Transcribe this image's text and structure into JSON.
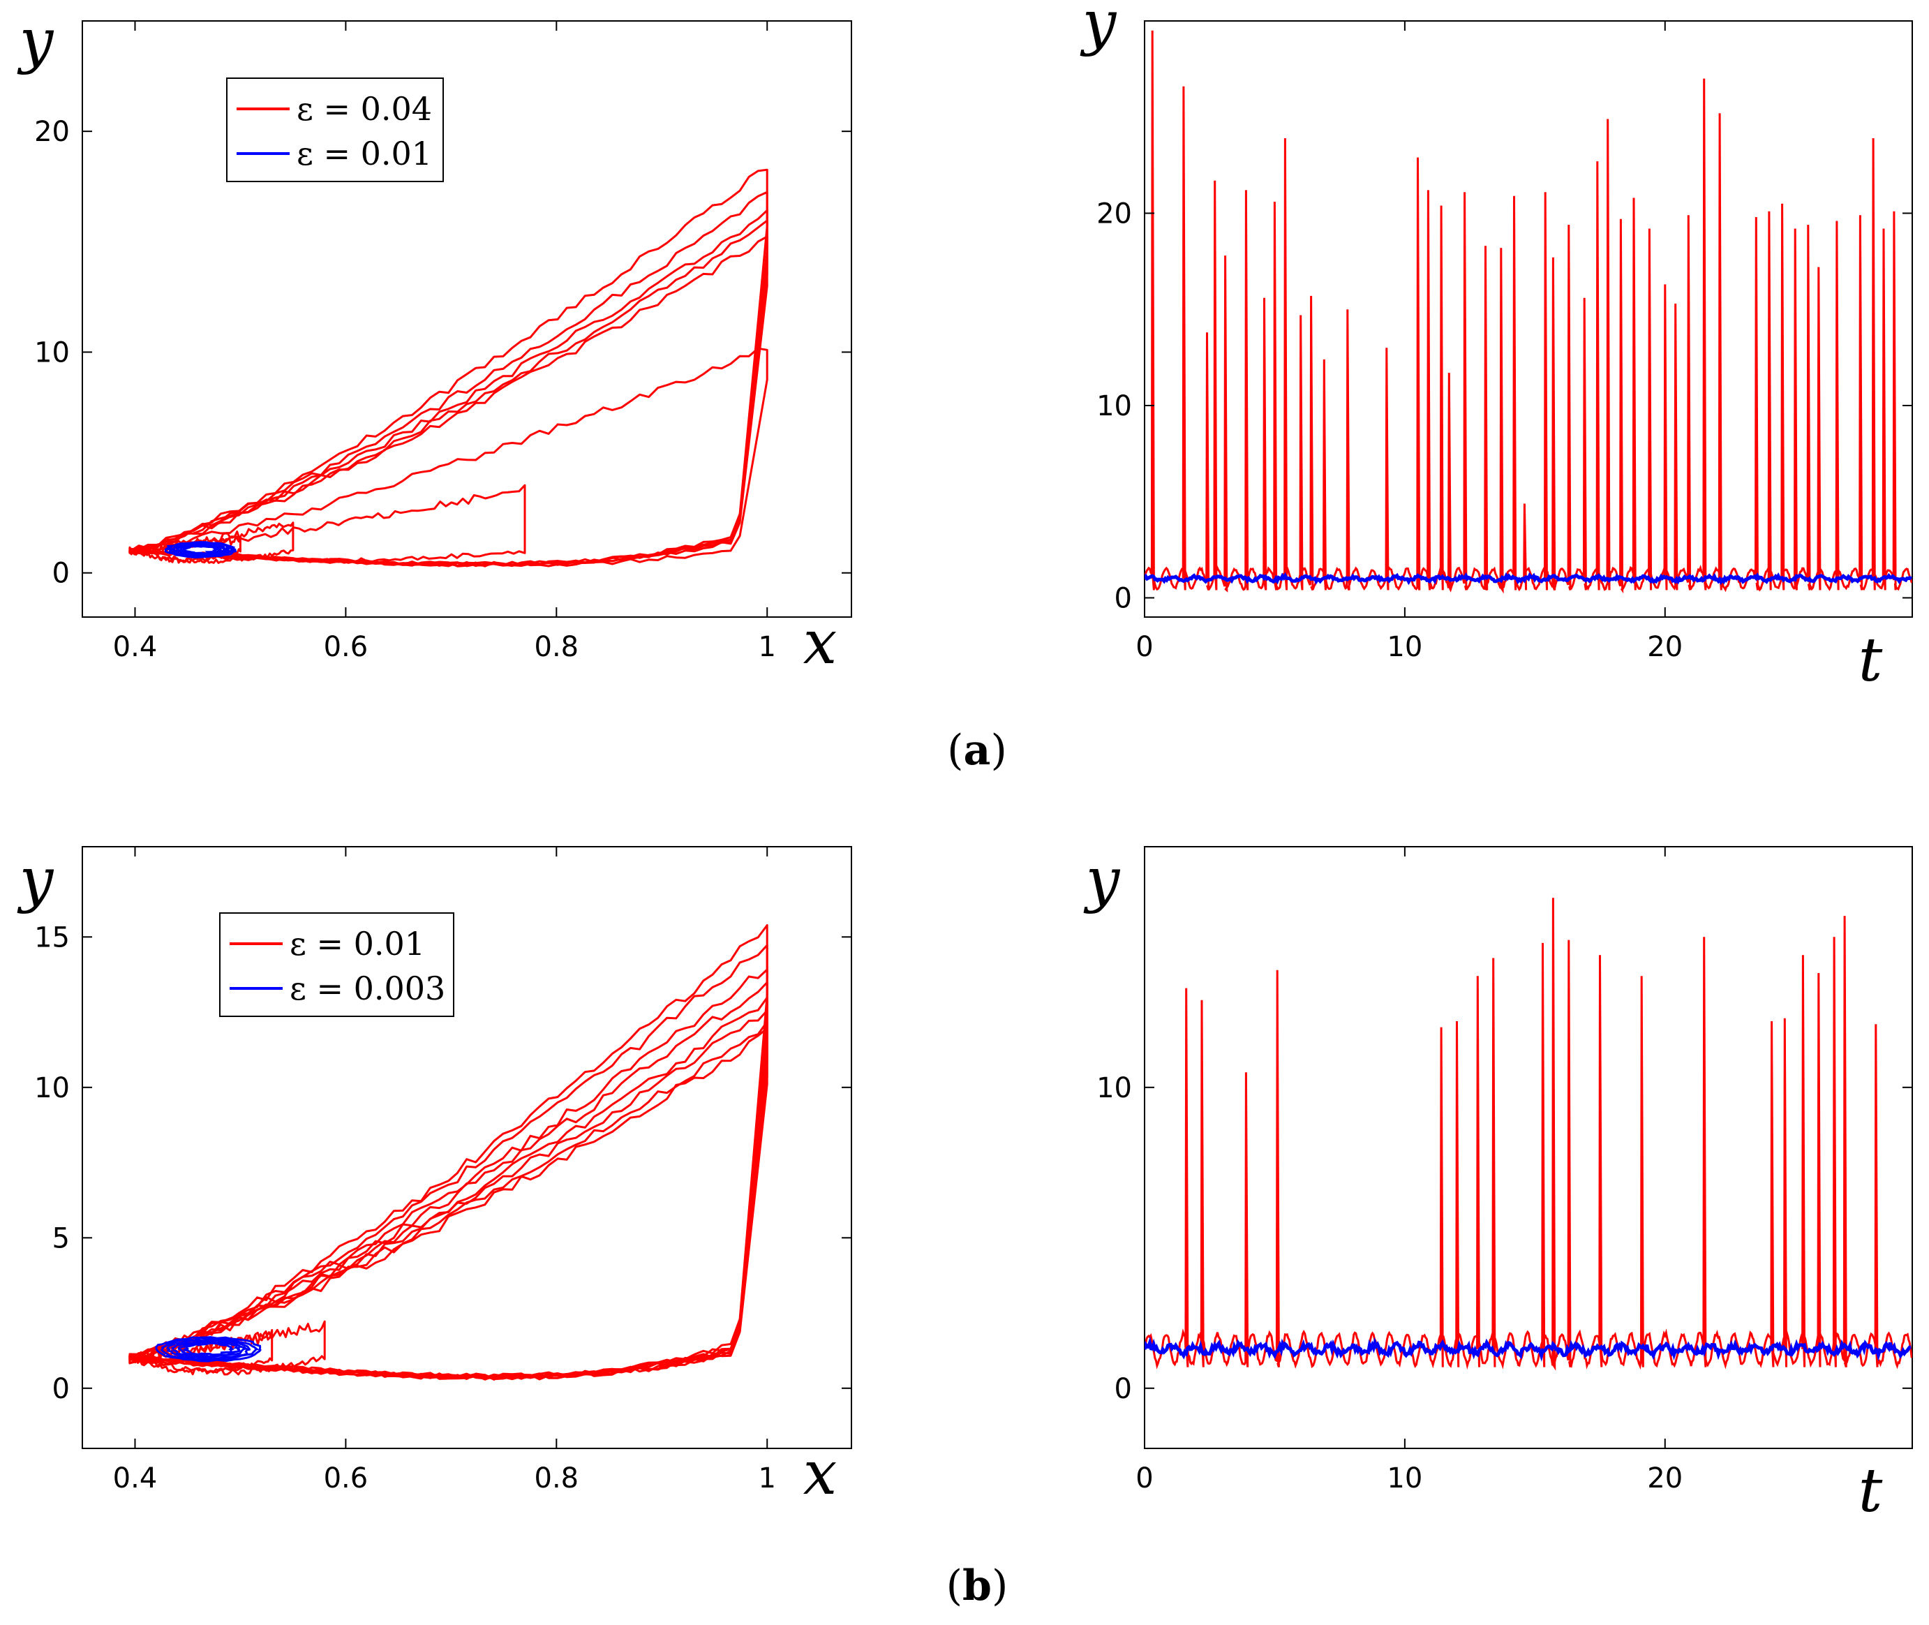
{
  "caption_a": "(a)",
  "caption_a_letter": "a",
  "caption_b": "(b)",
  "caption_b_letter": "b",
  "colors": {
    "red": "#ff0000",
    "blue": "#0000ff"
  },
  "chart_data": [
    {
      "id": "a-phase",
      "type": "line",
      "title": "",
      "xlabel": "x",
      "ylabel": "y",
      "xlim": [
        0.35,
        1.08
      ],
      "ylim": [
        -2,
        25
      ],
      "xticks": [
        0.4,
        0.6,
        0.8,
        1
      ],
      "xtick_labels": [
        "0.4",
        "0.6",
        "0.8",
        "1"
      ],
      "yticks": [
        0,
        10,
        20
      ],
      "ytick_labels": [
        "0",
        "10",
        "20"
      ],
      "legend": {
        "position": "top-left",
        "entries": [
          {
            "label": "ε = 0.04",
            "color": "#ff0000"
          },
          {
            "label": "ε = 0.01",
            "color": "#0000ff"
          }
        ]
      },
      "series": [
        {
          "name": "ε = 0.04",
          "color": "#ff0000",
          "kind": "loops",
          "loops": [
            {
              "peak": 18.4
            },
            {
              "peak": 17.2
            },
            {
              "peak": 16.3
            },
            {
              "peak": 15.8
            },
            {
              "peak": 15.2
            },
            {
              "peak": 10.2
            },
            {
              "peak": 3.8,
              "xmax": 0.77
            },
            {
              "peak": 2.2,
              "xmax": 0.55
            },
            {
              "peak": 1.5,
              "xmax": 0.5
            }
          ]
        },
        {
          "name": "ε = 0.01",
          "color": "#0000ff",
          "kind": "blob",
          "center": [
            0.462,
            1.05
          ],
          "rx": 0.03,
          "ry": 0.3
        }
      ]
    },
    {
      "id": "a-time",
      "type": "line",
      "title": "",
      "xlabel": "t",
      "ylabel": "y",
      "xlim": [
        0,
        29.5
      ],
      "ylim": [
        -1,
        30
      ],
      "xticks": [
        0,
        10,
        20
      ],
      "xtick_labels": [
        "0",
        "10",
        "20"
      ],
      "yticks": [
        0,
        10,
        20
      ],
      "ytick_labels": [
        "0",
        "10",
        "20"
      ],
      "baseline": 1.0,
      "series": [
        {
          "name": "ε = 0.04",
          "color": "#ff0000",
          "kind": "spikes",
          "spike_t": [
            0.3,
            1.5,
            2.4,
            2.7,
            3.1,
            3.9,
            4.6,
            5.0,
            5.4,
            6.0,
            6.4,
            6.9,
            7.8,
            9.3,
            10.5,
            10.9,
            11.4,
            11.7,
            12.3,
            13.1,
            13.7,
            14.2,
            14.6,
            15.4,
            15.7,
            16.3,
            16.9,
            17.4,
            17.8,
            18.3,
            18.8,
            19.4,
            20.0,
            20.4,
            20.9,
            21.5,
            22.1,
            23.5,
            24.0,
            24.5,
            25.0,
            25.5,
            25.9,
            26.6,
            27.5,
            28.0,
            28.4,
            28.8
          ],
          "spike_y": [
            29.5,
            26.6,
            13.8,
            21.7,
            17.8,
            21.2,
            15.6,
            20.6,
            23.9,
            14.7,
            15.7,
            12.4,
            15.0,
            13.0,
            22.9,
            21.2,
            20.4,
            11.7,
            21.1,
            18.3,
            18.2,
            20.9,
            4.9,
            21.1,
            17.7,
            19.4,
            15.6,
            22.7,
            24.9,
            19.7,
            20.8,
            19.2,
            16.3,
            15.3,
            19.9,
            27.0,
            25.2,
            19.8,
            20.1,
            20.5,
            19.2,
            19.4,
            17.2,
            19.6,
            19.9,
            23.9,
            19.2,
            20.1
          ]
        },
        {
          "name": "ε = 0.01",
          "color": "#0000ff",
          "kind": "noise",
          "level": 1.0,
          "amp": 0.15
        }
      ]
    },
    {
      "id": "b-phase",
      "type": "line",
      "title": "",
      "xlabel": "x",
      "ylabel": "y",
      "xlim": [
        0.35,
        1.08
      ],
      "ylim": [
        -2,
        18
      ],
      "xticks": [
        0.4,
        0.6,
        0.8,
        1
      ],
      "xtick_labels": [
        "0.4",
        "0.6",
        "0.8",
        "1"
      ],
      "yticks": [
        0,
        5,
        10,
        15
      ],
      "ytick_labels": [
        "0",
        "5",
        "10",
        "15"
      ],
      "legend": {
        "position": "top-left",
        "entries": [
          {
            "label": "ε = 0.01",
            "color": "#ff0000"
          },
          {
            "label": "ε = 0.003",
            "color": "#0000ff"
          }
        ]
      },
      "series": [
        {
          "name": "ε = 0.01",
          "color": "#ff0000",
          "kind": "loops",
          "loops": [
            {
              "peak": 15.3
            },
            {
              "peak": 14.8
            },
            {
              "peak": 14.0
            },
            {
              "peak": 13.5
            },
            {
              "peak": 12.9
            },
            {
              "peak": 12.6
            },
            {
              "peak": 12.1
            },
            {
              "peak": 11.8
            },
            {
              "peak": 2.1,
              "xmax": 0.58
            },
            {
              "peak": 1.8,
              "xmax": 0.53
            }
          ]
        },
        {
          "name": "ε = 0.003",
          "color": "#0000ff",
          "kind": "blob",
          "center": [
            0.47,
            1.3
          ],
          "rx": 0.045,
          "ry": 0.35
        }
      ]
    },
    {
      "id": "b-time",
      "type": "line",
      "title": "",
      "xlabel": "t",
      "ylabel": "y",
      "xlim": [
        0,
        29.5
      ],
      "ylim": [
        -2,
        18
      ],
      "xticks": [
        0,
        10,
        20
      ],
      "xtick_labels": [
        "0",
        "10",
        "20"
      ],
      "yticks": [
        0,
        10
      ],
      "ytick_labels": [
        "0",
        "10"
      ],
      "baseline": 1.3,
      "series": [
        {
          "name": "ε = 0.01",
          "color": "#ff0000",
          "kind": "spikes",
          "spike_t": [
            1.6,
            2.2,
            3.9,
            5.1,
            11.4,
            12.0,
            12.8,
            13.4,
            15.3,
            15.7,
            16.3,
            17.5,
            19.1,
            21.5,
            24.1,
            24.6,
            25.3,
            25.9,
            26.5,
            26.9,
            28.1
          ],
          "spike_y": [
            13.3,
            12.9,
            10.5,
            13.9,
            12.0,
            12.2,
            13.7,
            14.3,
            14.8,
            16.3,
            14.9,
            14.4,
            13.7,
            15.0,
            12.2,
            12.3,
            14.4,
            13.8,
            15.0,
            15.7,
            12.1
          ]
        },
        {
          "name": "ε = 0.003",
          "color": "#0000ff",
          "kind": "noise",
          "level": 1.3,
          "amp": 0.2
        }
      ]
    }
  ]
}
